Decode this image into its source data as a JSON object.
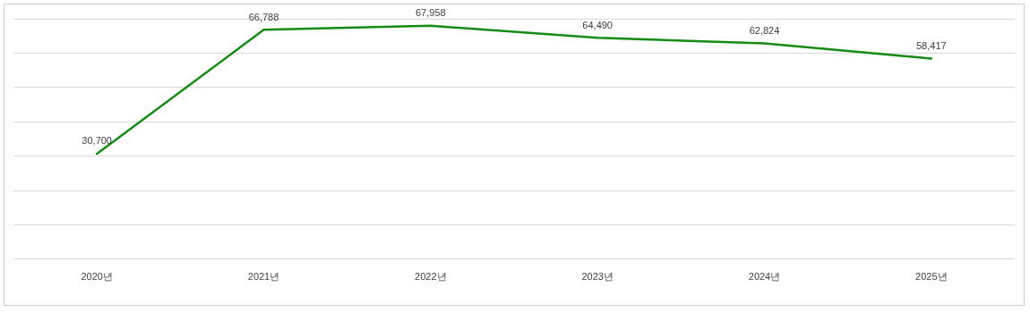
{
  "chart_data": {
    "type": "line",
    "categories": [
      "2020년",
      "2021년",
      "2022년",
      "2023년",
      "2024년",
      "2025년"
    ],
    "series": [
      {
        "color": "#158a15",
        "values": [
          30700,
          66788,
          67958,
          64490,
          62824,
          58417
        ],
        "value_labels": [
          "30,700",
          "66,788",
          "67,958",
          "64,490",
          "62,824",
          "58,417"
        ]
      }
    ],
    "tick_labels": "x",
    "grid": "y",
    "marker": "none",
    "line_style": "solid",
    "legend": false
  }
}
